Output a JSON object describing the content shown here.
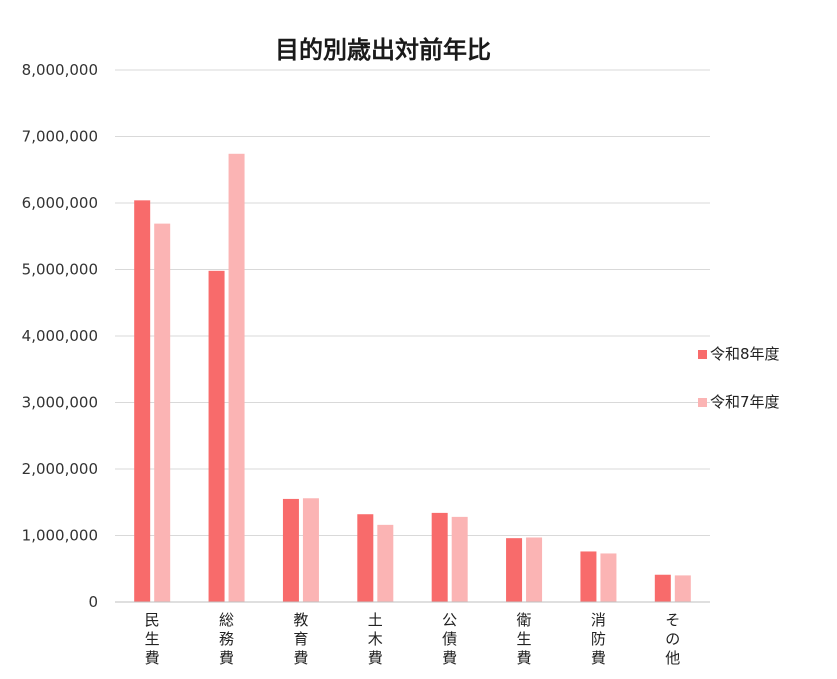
{
  "chart_data": {
    "type": "bar",
    "title": "目的別歳出対前年比",
    "xlabel": "",
    "ylabel": "",
    "ylim": [
      0,
      8000000
    ],
    "yticks": [
      0,
      1000000,
      2000000,
      3000000,
      4000000,
      5000000,
      6000000,
      7000000,
      8000000
    ],
    "ytick_labels": [
      "0",
      "1,000,000",
      "2,000,000",
      "3,000,000",
      "4,000,000",
      "5,000,000",
      "6,000,000",
      "7,000,000",
      "8,000,000"
    ],
    "categories": [
      "民生費",
      "総務費",
      "教育費",
      "土木費",
      "公債費",
      "衛生費",
      "消防費",
      "その他"
    ],
    "series": [
      {
        "name": "令和8年度",
        "color": "#f86b6b",
        "values": [
          6040000,
          4980000,
          1550000,
          1320000,
          1340000,
          960000,
          760000,
          410000
        ]
      },
      {
        "name": "令和7年度",
        "color": "#fbb4b4",
        "values": [
          5690000,
          6740000,
          1560000,
          1160000,
          1280000,
          970000,
          730000,
          400000
        ]
      }
    ],
    "grid": true,
    "legend": "right"
  }
}
